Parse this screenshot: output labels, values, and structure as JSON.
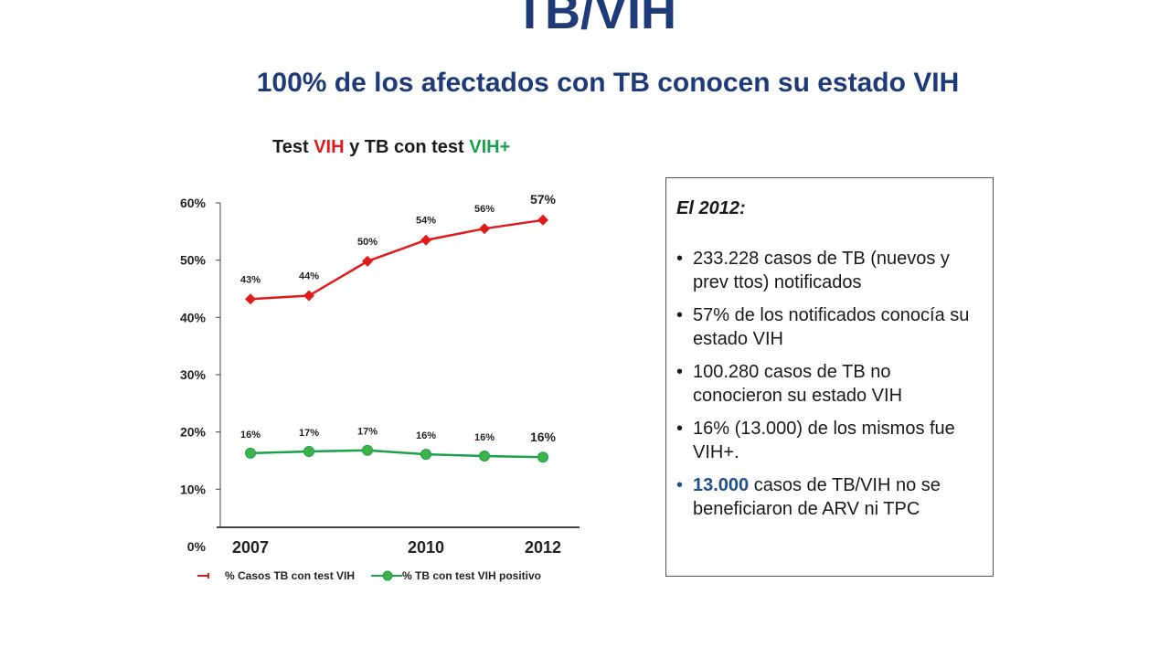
{
  "slide": {
    "title": "TB/VIH",
    "subtitle": "100% de los afectados con TB conocen su estado VIH"
  },
  "chart_title": {
    "part1": "Test ",
    "part2": "VIH",
    "part3": " y TB con test ",
    "part4": "VIH+"
  },
  "info": {
    "heading": "El 2012:",
    "bullets": [
      "233.228 casos de TB (nuevos y prev ttos) notificados",
      "57% de los notificados conocía su estado VIH",
      "100.280 casos de TB no conocieron su estado VIH",
      "16% (13.000) de los mismos fue VIH+."
    ],
    "last_bullet_number": "13.000",
    "last_bullet_rest": " casos de TB/VIH no se beneficiaron de ARV ni TPC"
  },
  "colors": {
    "title_blue": "#1f3a78",
    "red_series": "#e11b1b",
    "green_series": "#18a24a",
    "highlight_blue": "#1f4e8c"
  },
  "chart_data": {
    "type": "line",
    "title": "Test VIH y TB con test VIH+",
    "x": [
      2007,
      2008,
      2009,
      2010,
      2011,
      2012
    ],
    "x_tick_labels": [
      "2007",
      "",
      "",
      "2010",
      "",
      "2012"
    ],
    "y_tick_labels": [
      "0%",
      "10%",
      "20%",
      "30%",
      "40%",
      "50%",
      "60%"
    ],
    "ylim": [
      0,
      60
    ],
    "legend_position": "bottom",
    "series": [
      {
        "name": "% Casos TB con test VIH",
        "marker": "diamond",
        "color": "#e11b1b",
        "values": [
          43.2,
          43.8,
          49.8,
          53.5,
          55.5,
          57.0
        ],
        "labels": [
          "43%",
          "44%",
          "50%",
          "54%",
          "56%",
          "57%"
        ]
      },
      {
        "name": "% TB con test VIH positivo",
        "marker": "circle",
        "color": "#18a24a",
        "values": [
          16.3,
          16.6,
          16.8,
          16.1,
          15.8,
          15.6
        ],
        "labels": [
          "16%",
          "17%",
          "17%",
          "16%",
          "16%",
          "16%"
        ]
      }
    ]
  }
}
